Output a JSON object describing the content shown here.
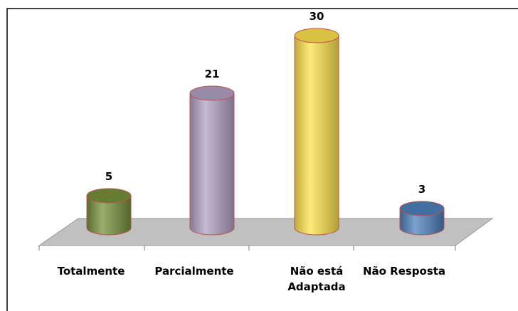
{
  "chart_data": {
    "type": "bar",
    "categories": [
      "Totalmente",
      "Parcialmente",
      "Não está Adaptada",
      "Não Resposta"
    ],
    "values": [
      5,
      21,
      30,
      3
    ],
    "colors": [
      "#77933c",
      "#b3a2c7",
      "#ffe34d",
      "#4f81bd"
    ]
  }
}
